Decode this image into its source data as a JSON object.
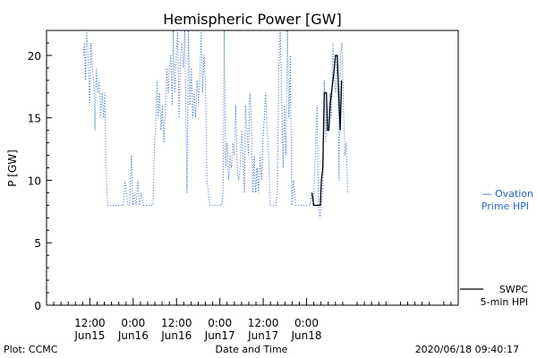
{
  "chart_data": {
    "type": "line",
    "title": "Hemispheric Power [GW]",
    "ylabel": "P [GW]",
    "xlabel": "Date and Time",
    "ylim": [
      0,
      22
    ],
    "xlim": [
      0,
      114
    ],
    "x_unit": "hours since Jun15 00:00 (x tick labels show date/time)",
    "yticks": [
      0,
      5,
      10,
      15,
      20
    ],
    "xticks": [
      {
        "x": 12,
        "time": "12:00",
        "day": "Jun15"
      },
      {
        "x": 24,
        "time": "0:00",
        "day": "Jun16"
      },
      {
        "x": 36,
        "time": "12:00",
        "day": "Jun16"
      },
      {
        "x": 48,
        "time": "0:00",
        "day": "Jun17"
      },
      {
        "x": 60,
        "time": "12:00",
        "day": "Jun17"
      },
      {
        "x": 72,
        "time": "0:00",
        "day": "Jun18"
      }
    ],
    "legend": [
      {
        "label_line1": "— Ovation",
        "label_line2": "Prime HPI",
        "color": "#2a64c8",
        "style": "dotted"
      },
      {
        "label_line1": "SWPC",
        "label_line2": "5-min HPI",
        "color": "#000000",
        "style": "solid"
      }
    ],
    "series": [
      {
        "name": "Ovation Prime HPI",
        "color": "#2a64c8",
        "style": "dotted",
        "points": [
          [
            10.2,
            20
          ],
          [
            10.5,
            21
          ],
          [
            10.8,
            18
          ],
          [
            11.1,
            22
          ],
          [
            11.5,
            20
          ],
          [
            11.9,
            16
          ],
          [
            12.3,
            21
          ],
          [
            12.7,
            19
          ],
          [
            13.1,
            18
          ],
          [
            13.4,
            14
          ],
          [
            13.8,
            19
          ],
          [
            14.2,
            17
          ],
          [
            14.6,
            18
          ],
          [
            15.0,
            15
          ],
          [
            15.4,
            17
          ],
          [
            15.8,
            15
          ],
          [
            16.1,
            17
          ],
          [
            16.5,
            11
          ],
          [
            16.9,
            8
          ],
          [
            17.5,
            8
          ],
          [
            18.5,
            8
          ],
          [
            19.5,
            8
          ],
          [
            20.5,
            8
          ],
          [
            21.3,
            8
          ],
          [
            21.7,
            10
          ],
          [
            22.1,
            9
          ],
          [
            22.5,
            8
          ],
          [
            23.0,
            8
          ],
          [
            23.5,
            12
          ],
          [
            23.9,
            8
          ],
          [
            24.3,
            9
          ],
          [
            24.8,
            8
          ],
          [
            25.3,
            10
          ],
          [
            25.7,
            8
          ],
          [
            26.2,
            9
          ],
          [
            26.8,
            8
          ],
          [
            27.5,
            8
          ],
          [
            28.2,
            8
          ],
          [
            28.9,
            8
          ],
          [
            29.5,
            8
          ],
          [
            29.9,
            13
          ],
          [
            30.3,
            15
          ],
          [
            30.6,
            18
          ],
          [
            30.9,
            15
          ],
          [
            31.3,
            17
          ],
          [
            31.7,
            14
          ],
          [
            32.1,
            16
          ],
          [
            32.5,
            13
          ],
          [
            32.9,
            16
          ],
          [
            33.3,
            19
          ],
          [
            33.7,
            17
          ],
          [
            34.0,
            19
          ],
          [
            34.4,
            20
          ],
          [
            34.8,
            16
          ],
          [
            35.1,
            22
          ],
          [
            35.5,
            17
          ],
          [
            35.9,
            20
          ],
          [
            36.3,
            22
          ],
          [
            36.7,
            15
          ],
          [
            37.1,
            20
          ],
          [
            37.5,
            21
          ],
          [
            37.9,
            19
          ],
          [
            38.3,
            22
          ],
          [
            38.6,
            15
          ],
          [
            38.9,
            9
          ],
          [
            39.3,
            22
          ],
          [
            39.7,
            16
          ],
          [
            40.1,
            19
          ],
          [
            40.5,
            15
          ],
          [
            40.9,
            17
          ],
          [
            41.3,
            15
          ],
          [
            41.7,
            18
          ],
          [
            42.1,
            16
          ],
          [
            42.5,
            19
          ],
          [
            42.8,
            22
          ],
          [
            43.2,
            17
          ],
          [
            43.6,
            20
          ],
          [
            44.0,
            18
          ],
          [
            44.4,
            10
          ],
          [
            44.8,
            9
          ],
          [
            45.2,
            8
          ],
          [
            46.0,
            8
          ],
          [
            47.0,
            8
          ],
          [
            48.0,
            8
          ],
          [
            48.5,
            8
          ],
          [
            48.9,
            9
          ],
          [
            49.2,
            22
          ],
          [
            49.6,
            11
          ],
          [
            50.0,
            13
          ],
          [
            50.4,
            10
          ],
          [
            50.8,
            12
          ],
          [
            51.2,
            11
          ],
          [
            51.6,
            13
          ],
          [
            52.0,
            12
          ],
          [
            52.4,
            16
          ],
          [
            52.8,
            11
          ],
          [
            53.2,
            10
          ],
          [
            53.6,
            11
          ],
          [
            54.0,
            14
          ],
          [
            54.4,
            12
          ],
          [
            54.8,
            9
          ],
          [
            55.1,
            16
          ],
          [
            55.5,
            14
          ],
          [
            55.9,
            12
          ],
          [
            56.3,
            17
          ],
          [
            56.7,
            15
          ],
          [
            57.1,
            9
          ],
          [
            57.5,
            12
          ],
          [
            57.9,
            9
          ],
          [
            58.3,
            11
          ],
          [
            58.7,
            9
          ],
          [
            59.1,
            12
          ],
          [
            59.5,
            10
          ],
          [
            59.9,
            13
          ],
          [
            60.3,
            15
          ],
          [
            60.7,
            17
          ],
          [
            61.1,
            14
          ],
          [
            61.5,
            12
          ],
          [
            61.9,
            8
          ],
          [
            62.5,
            8
          ],
          [
            63.0,
            8
          ],
          [
            63.5,
            8
          ],
          [
            63.9,
            9
          ],
          [
            64.3,
            19
          ],
          [
            64.7,
            22
          ],
          [
            65.1,
            17
          ],
          [
            65.5,
            11
          ],
          [
            65.9,
            16
          ],
          [
            66.3,
            12
          ],
          [
            66.7,
            22
          ],
          [
            67.1,
            15
          ],
          [
            67.5,
            20
          ],
          [
            67.9,
            8
          ],
          [
            68.3,
            10
          ],
          [
            68.7,
            9
          ],
          [
            69.0,
            8
          ],
          [
            70.0,
            8
          ],
          [
            71.0,
            8
          ],
          [
            72.0,
            8
          ],
          [
            73.0,
            8
          ],
          [
            73.4,
            9
          ],
          [
            73.8,
            8
          ],
          [
            74.2,
            10
          ],
          [
            74.6,
            14
          ],
          [
            74.9,
            16
          ],
          [
            75.3,
            8
          ],
          [
            75.7,
            7
          ],
          [
            76.1,
            8
          ],
          [
            76.5,
            9
          ],
          [
            76.9,
            18
          ],
          [
            77.3,
            13
          ],
          [
            77.7,
            16
          ],
          [
            78.1,
            14
          ],
          [
            78.5,
            17
          ],
          [
            78.9,
            15
          ],
          [
            79.3,
            21
          ],
          [
            79.7,
            18
          ],
          [
            80.1,
            17
          ],
          [
            80.4,
            20
          ],
          [
            80.7,
            18
          ],
          [
            81.0,
            10
          ],
          [
            81.4,
            20
          ],
          [
            81.8,
            21
          ],
          [
            82.2,
            16
          ],
          [
            82.6,
            12
          ],
          [
            83.0,
            13
          ],
          [
            83.4,
            9
          ]
        ]
      },
      {
        "name": "SWPC 5-min HPI",
        "color": "#000000",
        "style": "solid",
        "points": [
          [
            73.5,
            9
          ],
          [
            74.0,
            8
          ],
          [
            75.0,
            8
          ],
          [
            75.8,
            8
          ],
          [
            76.1,
            10
          ],
          [
            76.5,
            11
          ],
          [
            76.9,
            17
          ],
          [
            77.5,
            17
          ],
          [
            77.8,
            14
          ],
          [
            78.2,
            14
          ],
          [
            78.5,
            16
          ],
          [
            78.9,
            17
          ],
          [
            79.3,
            18
          ],
          [
            79.7,
            19
          ],
          [
            80.0,
            20
          ],
          [
            80.5,
            20
          ],
          [
            80.9,
            17
          ],
          [
            81.3,
            14
          ],
          [
            81.7,
            18
          ]
        ]
      }
    ]
  },
  "footer": {
    "plot_credit": "Plot: CCMC",
    "timestamp": "2020/06/18 09:40:17"
  }
}
